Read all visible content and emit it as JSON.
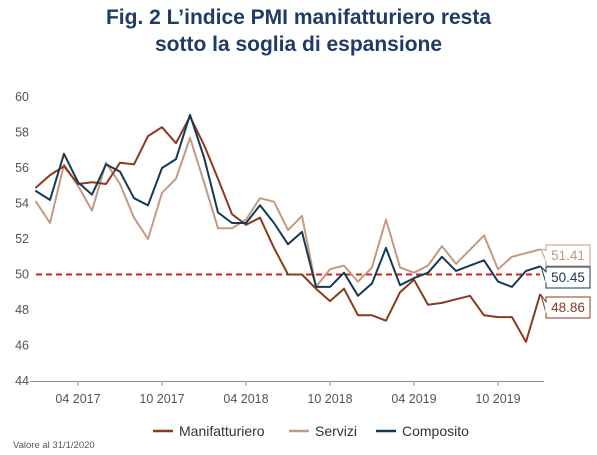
{
  "colors": {
    "manifatturiero": "#8b3a1c",
    "servizi": "#c49a80",
    "composito": "#163a56",
    "threshold": "#d42020",
    "title": "#1f3b66"
  },
  "note": "Valore al 31/1/2020",
  "chart_data": {
    "type": "line",
    "title": "Fig. 2 L’indice PMI manifatturiero resta",
    "subtitle": "sotto la soglia di espansione",
    "xlabel": "",
    "ylabel": "",
    "ylim": [
      44,
      60
    ],
    "yticks": [
      44,
      46,
      48,
      50,
      52,
      54,
      56,
      58,
      60
    ],
    "xtick_labels": [
      "04 2017",
      "10 2017",
      "04 2018",
      "10 2018",
      "04 2019",
      "10 2019"
    ],
    "xtick_index": [
      3,
      9,
      15,
      21,
      27,
      33
    ],
    "threshold": 50,
    "legend_position": "bottom",
    "grid": false,
    "series": [
      {
        "name": "Manifatturiero",
        "values": [
          54.9,
          55.6,
          56.1,
          55.1,
          55.2,
          55.1,
          56.3,
          56.2,
          57.8,
          58.3,
          57.4,
          58.9,
          57.3,
          55.4,
          53.4,
          52.8,
          53.2,
          51.5,
          50.0,
          50.0,
          49.2,
          48.5,
          49.2,
          47.7,
          47.7,
          47.4,
          49.0,
          49.7,
          48.3,
          48.4,
          48.6,
          48.8,
          47.7,
          47.6,
          47.6,
          46.2,
          48.86
        ],
        "last_label": "48.86"
      },
      {
        "name": "Servizi",
        "values": [
          54.1,
          52.9,
          56.2,
          55.0,
          53.6,
          56.3,
          55.1,
          53.2,
          52.0,
          54.6,
          55.4,
          57.7,
          55.2,
          52.6,
          52.6,
          53.1,
          54.3,
          54.1,
          52.5,
          53.3,
          49.3,
          50.3,
          50.5,
          49.6,
          50.4,
          53.1,
          50.4,
          50.1,
          50.5,
          51.6,
          50.6,
          51.4,
          52.2,
          50.3,
          51.0,
          51.2,
          51.41
        ],
        "last_label": "51.41"
      },
      {
        "name": "Composito",
        "values": [
          54.7,
          54.2,
          56.8,
          55.2,
          54.5,
          56.2,
          55.8,
          54.3,
          53.9,
          56.0,
          56.5,
          59.0,
          56.6,
          53.5,
          52.9,
          52.9,
          53.9,
          52.9,
          51.7,
          52.4,
          49.3,
          49.3,
          50.1,
          48.8,
          49.5,
          51.5,
          49.4,
          49.8,
          50.1,
          51.0,
          50.2,
          50.5,
          50.8,
          49.6,
          49.3,
          50.2,
          50.45
        ],
        "last_label": "50.45"
      }
    ]
  }
}
